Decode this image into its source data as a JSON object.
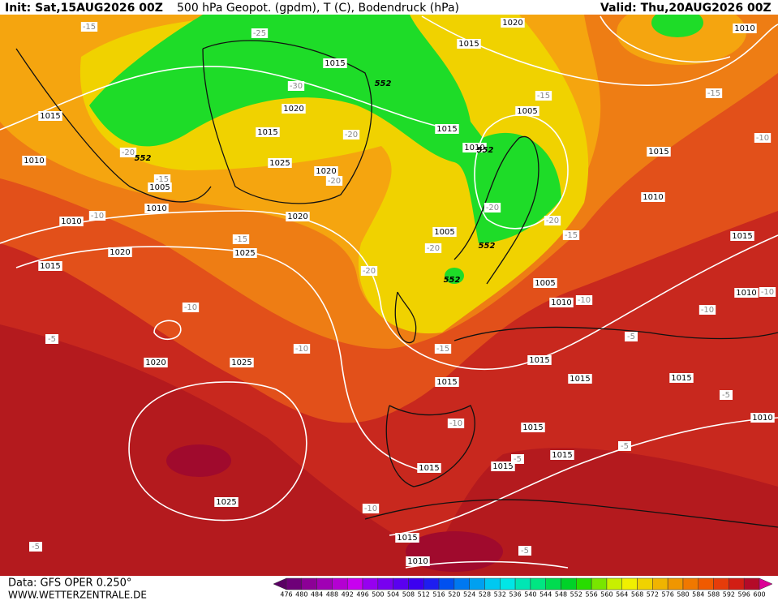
{
  "header": {
    "init": "Init: Sat,15AUG2026 00Z",
    "title": "500 hPa Geopot. (gpdm), T (C), Bodendruck (hPa)",
    "valid": "Valid: Thu,20AUG2026 00Z"
  },
  "isobar_labels": [
    1020,
    1010,
    1015,
    1015,
    1015,
    1005,
    1020,
    1015,
    1015,
    1010,
    1015,
    1010,
    1025,
    1020,
    1005,
    1010,
    1010,
    1010,
    1020,
    1005,
    1015,
    1020,
    1025,
    1015,
    1005,
    1010,
    1010,
    1020,
    1025,
    1015,
    1015,
    1015,
    1015,
    1015,
    1010,
    1015,
    1015,
    1015,
    1025,
    1015,
    1010
  ],
  "temperature_labels": [
    -15,
    -25,
    -30,
    -20,
    -15,
    -20,
    -20,
    -15,
    -15,
    -10,
    -20,
    -20,
    -15,
    -10,
    -15,
    -20,
    -20,
    -10,
    -5,
    -10,
    -10,
    -10,
    -5,
    -15,
    -10,
    -5,
    -5,
    -5,
    -10,
    -5,
    -5,
    -10
  ],
  "height_labels": [
    552,
    552,
    552,
    552,
    552
  ],
  "colorbar": {
    "labels": [
      476,
      480,
      484,
      488,
      492,
      496,
      500,
      504,
      508,
      512,
      516,
      520,
      524,
      528,
      532,
      536,
      540,
      544,
      548,
      552,
      556,
      560,
      564,
      568,
      572,
      576,
      580,
      584,
      588,
      592,
      596,
      600
    ],
    "colors": [
      "#5a0064",
      "#6e0078",
      "#8c0096",
      "#a000b4",
      "#b400d2",
      "#c800f0",
      "#9600f0",
      "#7800f0",
      "#5a00f0",
      "#3c00f0",
      "#1e1ef0",
      "#0050f0",
      "#0078f0",
      "#00a0f0",
      "#00c8f0",
      "#00e6e6",
      "#00e6b4",
      "#00e682",
      "#00dc50",
      "#00d228",
      "#28dc00",
      "#78e600",
      "#c8f000",
      "#f0f000",
      "#f0d200",
      "#f0b400",
      "#f09600",
      "#f07800",
      "#f05a00",
      "#e63c0a",
      "#d21e14",
      "#b40a28",
      "#dc0096"
    ]
  },
  "footer": {
    "data": "Data: GFS OPER 0.250°",
    "site": "WWW.WETTERZENTRALE.DE"
  }
}
